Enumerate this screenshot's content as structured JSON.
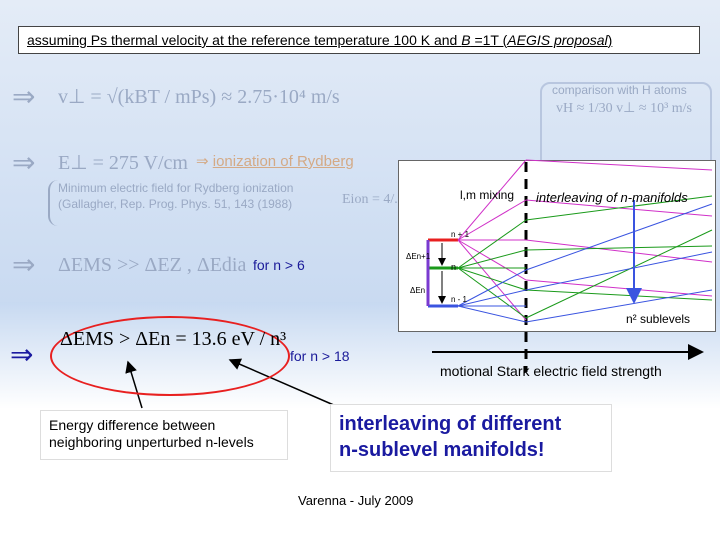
{
  "title": {
    "prefix": "assuming Ps thermal velocity at the reference temperature 100 K and ",
    "b": "B",
    "mid": " =1T (",
    "aegis": "AEGIS proposal",
    "suffix": ")"
  },
  "equations": {
    "eq1": "v⊥ = √(kBT / mPs) ≈ 2.75·10⁴ m/s",
    "eq2": "E⊥ = 275 V/cm",
    "eq3": "ΔEMS >> ΔEZ , ΔEdia",
    "main": "ΔEMS > ΔEn = 13.6 eV / n³",
    "emin": "Eion = 4/..."
  },
  "ionization": {
    "arrow": "⇒",
    "text": "ionization of Rydberg"
  },
  "min_field": {
    "line1": "Minimum electric field for Rydberg ionization",
    "line2": "(Gallagher, Rep. Prog. Phys. 51, 143 (1988)"
  },
  "comparison": {
    "label": "comparison with H atoms",
    "eq": "vH ≈ 1/30 v⊥ ≈ 10³ m/s"
  },
  "for_n6": "for n > 6",
  "for_n18": "for n > 18",
  "diagram": {
    "lm_mixing": "l,m mixing",
    "interleaving": "interleaving of n-manifolds",
    "n2_sublevels": "n² sublevels",
    "stark_axis": "motional Stark electric field strength",
    "level_top": "n + 1",
    "level_mid": "n",
    "level_bot": "n - 1",
    "dE_top": "ΔEn+1",
    "dE_bot": "ΔEn"
  },
  "energy_box": {
    "line1": "Energy difference between",
    "line2": "neighboring unperturbed n-levels"
  },
  "interleave_box": {
    "line1": "interleaving of different",
    "line2": "n-sublevel manifolds!"
  },
  "footer": "Varenna - July 2009",
  "colors": {
    "red": "#e82020",
    "green": "#1a9a1a",
    "blue": "#3a54e0",
    "purple": "#7a3ad0",
    "accent": "#1a1aa0"
  }
}
